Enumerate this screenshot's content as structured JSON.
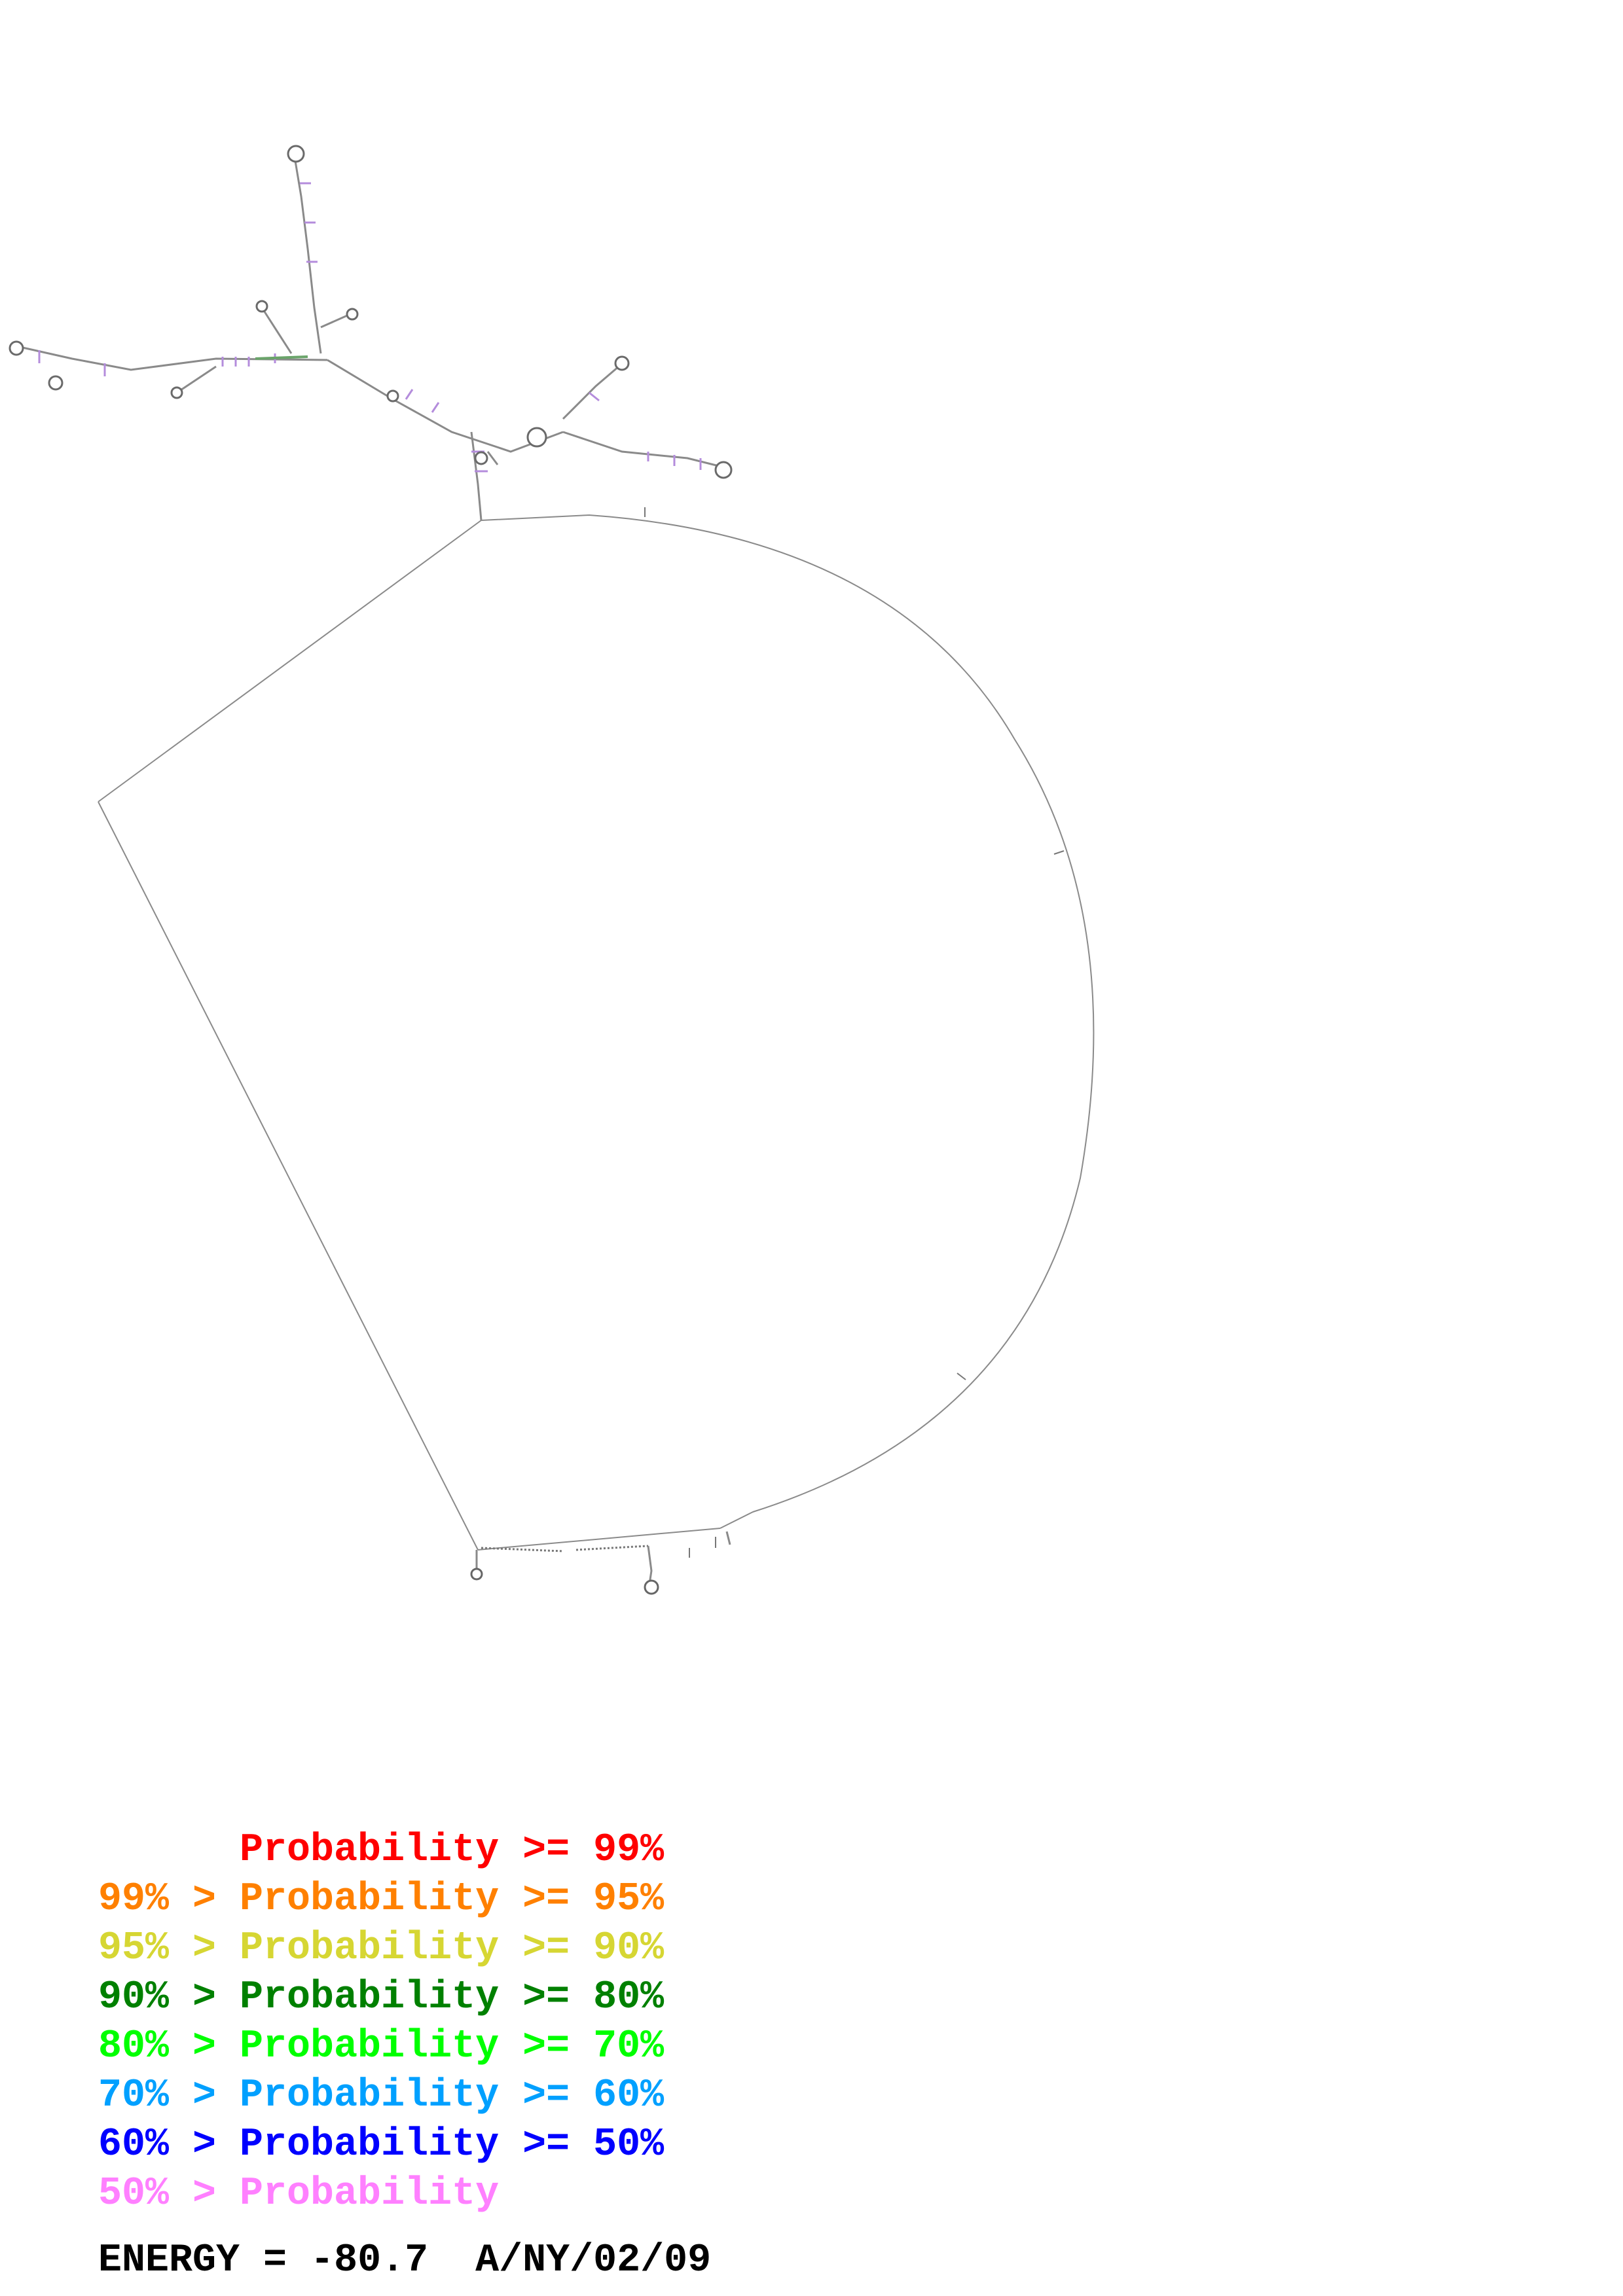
{
  "legend": [
    {
      "prefix": "",
      "label": "Probability",
      "suffix": " >= 99%",
      "color": "#ff0000"
    },
    {
      "prefix": "99% > ",
      "label": "Probability",
      "suffix": " >= 95%",
      "color": "#ff8000"
    },
    {
      "prefix": "95% > ",
      "label": "Probability",
      "suffix": " >= 90%",
      "color": "#d6d633"
    },
    {
      "prefix": "90% > ",
      "label": "Probability",
      "suffix": " >= 80%",
      "color": "#008000"
    },
    {
      "prefix": "80% > ",
      "label": "Probability",
      "suffix": " >= 70%",
      "color": "#00ff00"
    },
    {
      "prefix": "70% > ",
      "label": "Probability",
      "suffix": " >= 60%",
      "color": "#00a0ff"
    },
    {
      "prefix": "60% > ",
      "label": "Probability",
      "suffix": " >= 50%",
      "color": "#0000ff"
    },
    {
      "prefix": "50% > ",
      "label": "Probability",
      "suffix": "",
      "color": "#ff80ff"
    }
  ],
  "energy": {
    "label": "ENERGY =",
    "value": "-80.7",
    "name": "A/NY/02/09"
  },
  "colors": {
    "backbone": "#888888",
    "pair_default": "#b48cdc",
    "pair_high": "#6a9a6a"
  }
}
